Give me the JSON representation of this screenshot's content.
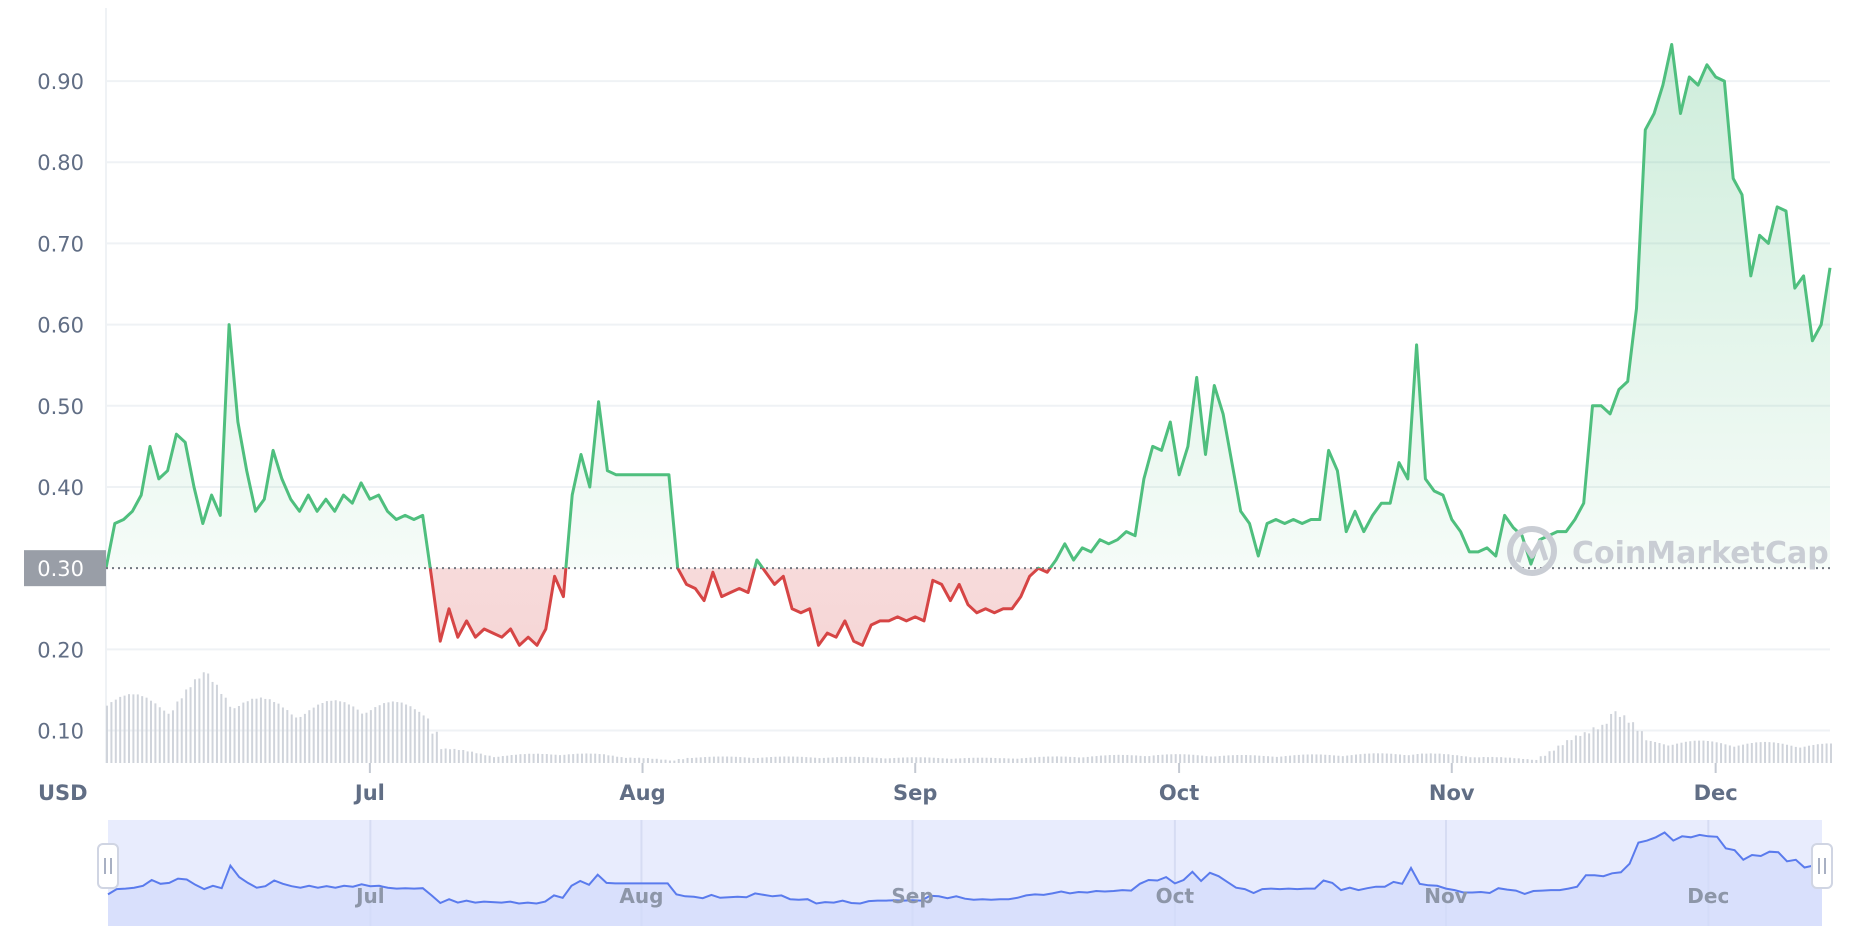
{
  "chart_data": {
    "type": "line",
    "currency_label": "USD",
    "watermark": "CoinMarketCap",
    "baseline_value": 0.3,
    "baseline_label": "0.30",
    "y_ticks": [
      {
        "value": 0.1,
        "label": "0.10"
      },
      {
        "value": 0.2,
        "label": "0.20"
      },
      {
        "value": 0.4,
        "label": "0.40"
      },
      {
        "value": 0.5,
        "label": "0.50"
      },
      {
        "value": 0.6,
        "label": "0.60"
      },
      {
        "value": 0.7,
        "label": "0.70"
      },
      {
        "value": 0.8,
        "label": "0.80"
      },
      {
        "value": 0.9,
        "label": "0.90"
      }
    ],
    "ylim": [
      0.06,
      0.99
    ],
    "x_ticks": [
      {
        "date": "2021-07-01",
        "label": "Jul"
      },
      {
        "date": "2021-08-01",
        "label": "Aug"
      },
      {
        "date": "2021-09-01",
        "label": "Sep"
      },
      {
        "date": "2021-10-01",
        "label": "Oct"
      },
      {
        "date": "2021-11-01",
        "label": "Nov"
      },
      {
        "date": "2021-12-01",
        "label": "Dec"
      }
    ],
    "xlim": [
      "2021-06-01",
      "2021-12-14"
    ],
    "colors": {
      "up": "#4fbf7e",
      "down": "#d64545",
      "grid": "#eff2f5",
      "axis_text": "#616e85",
      "baseline_label_bg": "#999ea7",
      "navigator_fill": "#e8ecfd",
      "navigator_line": "#5a7bed",
      "volume": "#d0d4db"
    },
    "series": [
      {
        "points": [
          [
            "2021-06-01",
            0.3
          ],
          [
            "2021-06-02",
            0.355
          ],
          [
            "2021-06-03",
            0.36
          ],
          [
            "2021-06-04",
            0.37
          ],
          [
            "2021-06-05",
            0.39
          ],
          [
            "2021-06-06",
            0.45
          ],
          [
            "2021-06-07",
            0.41
          ],
          [
            "2021-06-08",
            0.42
          ],
          [
            "2021-06-09",
            0.465
          ],
          [
            "2021-06-10",
            0.455
          ],
          [
            "2021-06-11",
            0.4
          ],
          [
            "2021-06-12",
            0.355
          ],
          [
            "2021-06-13",
            0.39
          ],
          [
            "2021-06-14",
            0.365
          ],
          [
            "2021-06-15",
            0.6
          ],
          [
            "2021-06-16",
            0.48
          ],
          [
            "2021-06-17",
            0.42
          ],
          [
            "2021-06-18",
            0.37
          ],
          [
            "2021-06-19",
            0.385
          ],
          [
            "2021-06-20",
            0.445
          ],
          [
            "2021-06-21",
            0.41
          ],
          [
            "2021-06-22",
            0.385
          ],
          [
            "2021-06-23",
            0.37
          ],
          [
            "2021-06-24",
            0.39
          ],
          [
            "2021-06-25",
            0.37
          ],
          [
            "2021-06-26",
            0.385
          ],
          [
            "2021-06-27",
            0.37
          ],
          [
            "2021-06-28",
            0.39
          ],
          [
            "2021-06-29",
            0.38
          ],
          [
            "2021-06-30",
            0.405
          ],
          [
            "2021-07-01",
            0.385
          ],
          [
            "2021-07-02",
            0.39
          ],
          [
            "2021-07-03",
            0.37
          ],
          [
            "2021-07-04",
            0.36
          ],
          [
            "2021-07-05",
            0.365
          ],
          [
            "2021-07-06",
            0.36
          ],
          [
            "2021-07-07",
            0.365
          ],
          [
            "2021-07-08",
            0.29
          ],
          [
            "2021-07-09",
            0.21
          ],
          [
            "2021-07-10",
            0.25
          ],
          [
            "2021-07-11",
            0.215
          ],
          [
            "2021-07-12",
            0.235
          ],
          [
            "2021-07-13",
            0.215
          ],
          [
            "2021-07-14",
            0.225
          ],
          [
            "2021-07-15",
            0.22
          ],
          [
            "2021-07-16",
            0.215
          ],
          [
            "2021-07-17",
            0.225
          ],
          [
            "2021-07-18",
            0.205
          ],
          [
            "2021-07-19",
            0.215
          ],
          [
            "2021-07-20",
            0.205
          ],
          [
            "2021-07-21",
            0.225
          ],
          [
            "2021-07-22",
            0.29
          ],
          [
            "2021-07-23",
            0.265
          ],
          [
            "2021-07-24",
            0.39
          ],
          [
            "2021-07-25",
            0.44
          ],
          [
            "2021-07-26",
            0.4
          ],
          [
            "2021-07-27",
            0.505
          ],
          [
            "2021-07-28",
            0.42
          ],
          [
            "2021-07-29",
            0.415
          ],
          [
            "2021-08-04",
            0.415
          ],
          [
            "2021-08-05",
            0.3
          ],
          [
            "2021-08-06",
            0.28
          ],
          [
            "2021-08-07",
            0.275
          ],
          [
            "2021-08-08",
            0.26
          ],
          [
            "2021-08-09",
            0.295
          ],
          [
            "2021-08-10",
            0.265
          ],
          [
            "2021-08-11",
            0.27
          ],
          [
            "2021-08-12",
            0.275
          ],
          [
            "2021-08-13",
            0.27
          ],
          [
            "2021-08-14",
            0.31
          ],
          [
            "2021-08-15",
            0.295
          ],
          [
            "2021-08-16",
            0.28
          ],
          [
            "2021-08-17",
            0.29
          ],
          [
            "2021-08-18",
            0.25
          ],
          [
            "2021-08-19",
            0.245
          ],
          [
            "2021-08-20",
            0.25
          ],
          [
            "2021-08-21",
            0.205
          ],
          [
            "2021-08-22",
            0.22
          ],
          [
            "2021-08-23",
            0.215
          ],
          [
            "2021-08-24",
            0.235
          ],
          [
            "2021-08-25",
            0.21
          ],
          [
            "2021-08-26",
            0.205
          ],
          [
            "2021-08-27",
            0.23
          ],
          [
            "2021-08-28",
            0.235
          ],
          [
            "2021-08-29",
            0.235
          ],
          [
            "2021-08-30",
            0.24
          ],
          [
            "2021-08-31",
            0.235
          ],
          [
            "2021-09-01",
            0.24
          ],
          [
            "2021-09-02",
            0.235
          ],
          [
            "2021-09-03",
            0.285
          ],
          [
            "2021-09-04",
            0.28
          ],
          [
            "2021-09-05",
            0.26
          ],
          [
            "2021-09-06",
            0.28
          ],
          [
            "2021-09-07",
            0.255
          ],
          [
            "2021-09-08",
            0.245
          ],
          [
            "2021-09-09",
            0.25
          ],
          [
            "2021-09-10",
            0.245
          ],
          [
            "2021-09-11",
            0.25
          ],
          [
            "2021-09-12",
            0.25
          ],
          [
            "2021-09-13",
            0.265
          ],
          [
            "2021-09-14",
            0.29
          ],
          [
            "2021-09-15",
            0.3
          ],
          [
            "2021-09-16",
            0.295
          ],
          [
            "2021-09-17",
            0.31
          ],
          [
            "2021-09-18",
            0.33
          ],
          [
            "2021-09-19",
            0.31
          ],
          [
            "2021-09-20",
            0.325
          ],
          [
            "2021-09-21",
            0.32
          ],
          [
            "2021-09-22",
            0.335
          ],
          [
            "2021-09-23",
            0.33
          ],
          [
            "2021-09-24",
            0.335
          ],
          [
            "2021-09-25",
            0.345
          ],
          [
            "2021-09-26",
            0.34
          ],
          [
            "2021-09-27",
            0.41
          ],
          [
            "2021-09-28",
            0.45
          ],
          [
            "2021-09-29",
            0.445
          ],
          [
            "2021-09-30",
            0.48
          ],
          [
            "2021-10-01",
            0.415
          ],
          [
            "2021-10-02",
            0.45
          ],
          [
            "2021-10-03",
            0.535
          ],
          [
            "2021-10-04",
            0.44
          ],
          [
            "2021-10-05",
            0.525
          ],
          [
            "2021-10-06",
            0.49
          ],
          [
            "2021-10-07",
            0.43
          ],
          [
            "2021-10-08",
            0.37
          ],
          [
            "2021-10-09",
            0.355
          ],
          [
            "2021-10-10",
            0.315
          ],
          [
            "2021-10-11",
            0.355
          ],
          [
            "2021-10-12",
            0.36
          ],
          [
            "2021-10-13",
            0.355
          ],
          [
            "2021-10-14",
            0.36
          ],
          [
            "2021-10-15",
            0.355
          ],
          [
            "2021-10-16",
            0.36
          ],
          [
            "2021-10-17",
            0.36
          ],
          [
            "2021-10-18",
            0.445
          ],
          [
            "2021-10-19",
            0.42
          ],
          [
            "2021-10-20",
            0.345
          ],
          [
            "2021-10-21",
            0.37
          ],
          [
            "2021-10-22",
            0.345
          ],
          [
            "2021-10-23",
            0.365
          ],
          [
            "2021-10-24",
            0.38
          ],
          [
            "2021-10-25",
            0.38
          ],
          [
            "2021-10-26",
            0.43
          ],
          [
            "2021-10-27",
            0.41
          ],
          [
            "2021-10-28",
            0.575
          ],
          [
            "2021-10-29",
            0.41
          ],
          [
            "2021-10-30",
            0.395
          ],
          [
            "2021-10-31",
            0.39
          ],
          [
            "2021-11-01",
            0.36
          ],
          [
            "2021-11-02",
            0.345
          ],
          [
            "2021-11-03",
            0.32
          ],
          [
            "2021-11-04",
            0.32
          ],
          [
            "2021-11-05",
            0.325
          ],
          [
            "2021-11-06",
            0.315
          ],
          [
            "2021-11-07",
            0.365
          ],
          [
            "2021-11-08",
            0.35
          ],
          [
            "2021-11-09",
            0.34
          ],
          [
            "2021-11-10",
            0.305
          ],
          [
            "2021-11-11",
            0.335
          ],
          [
            "2021-11-12",
            0.34
          ],
          [
            "2021-11-13",
            0.345
          ],
          [
            "2021-11-14",
            0.345
          ],
          [
            "2021-11-15",
            0.36
          ],
          [
            "2021-11-16",
            0.38
          ],
          [
            "2021-11-17",
            0.5
          ],
          [
            "2021-11-18",
            0.5
          ],
          [
            "2021-11-19",
            0.49
          ],
          [
            "2021-11-20",
            0.52
          ],
          [
            "2021-11-21",
            0.53
          ],
          [
            "2021-11-22",
            0.62
          ],
          [
            "2021-11-23",
            0.84
          ],
          [
            "2021-11-24",
            0.86
          ],
          [
            "2021-11-25",
            0.895
          ],
          [
            "2021-11-26",
            0.945
          ],
          [
            "2021-11-27",
            0.86
          ],
          [
            "2021-11-28",
            0.905
          ],
          [
            "2021-11-29",
            0.895
          ],
          [
            "2021-11-30",
            0.92
          ],
          [
            "2021-12-01",
            0.905
          ],
          [
            "2021-12-02",
            0.9
          ],
          [
            "2021-12-03",
            0.78
          ],
          [
            "2021-12-04",
            0.76
          ],
          [
            "2021-12-05",
            0.66
          ],
          [
            "2021-12-06",
            0.71
          ],
          [
            "2021-12-07",
            0.7
          ],
          [
            "2021-12-08",
            0.745
          ],
          [
            "2021-12-09",
            0.74
          ],
          [
            "2021-12-10",
            0.645
          ],
          [
            "2021-12-11",
            0.66
          ],
          [
            "2021-12-12",
            0.58
          ],
          [
            "2021-12-13",
            0.6
          ],
          [
            "2021-12-14",
            0.67
          ]
        ]
      }
    ],
    "volume": [
      [
        "2021-06-01",
        0.55
      ],
      [
        "2021-06-08",
        0.5
      ],
      [
        "2021-06-12",
        0.7
      ],
      [
        "2021-06-15",
        0.55
      ],
      [
        "2021-06-22",
        0.45
      ],
      [
        "2021-06-29",
        0.5
      ],
      [
        "2021-07-07",
        0.45
      ],
      [
        "2021-07-09",
        0.12
      ],
      [
        "2021-07-15",
        0.06
      ],
      [
        "2021-07-22",
        0.08
      ],
      [
        "2021-07-27",
        0.07
      ],
      [
        "2021-08-04",
        0.02
      ],
      [
        "2021-08-06",
        0.05
      ],
      [
        "2021-08-20",
        0.05
      ],
      [
        "2021-09-10",
        0.04
      ],
      [
        "2021-09-28",
        0.07
      ],
      [
        "2021-10-10",
        0.06
      ],
      [
        "2021-10-28",
        0.08
      ],
      [
        "2021-11-10",
        0.03
      ],
      [
        "2021-11-16",
        0.25
      ],
      [
        "2021-11-19",
        0.45
      ],
      [
        "2021-11-23",
        0.18
      ],
      [
        "2021-12-01",
        0.17
      ],
      [
        "2021-12-14",
        0.15
      ]
    ]
  }
}
